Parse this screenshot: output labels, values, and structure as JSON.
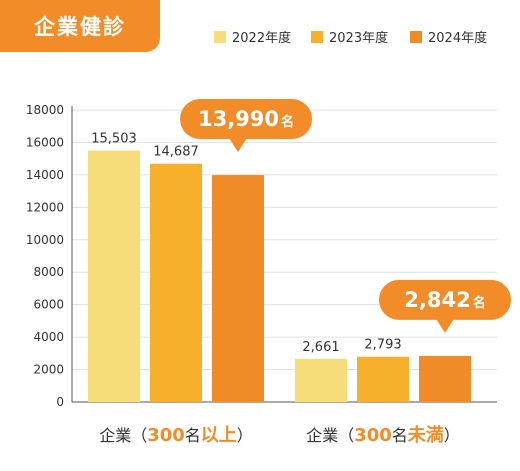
{
  "title": "企業健診",
  "colors": {
    "accent": "#f28c28",
    "series": [
      "#f7dc7a",
      "#f6b02c",
      "#f08c28"
    ],
    "axis_text": "#333333",
    "grid": "#e0e0e0"
  },
  "chart_data": {
    "type": "bar",
    "categories": [
      "企業（300名以上）",
      "企業（300名未満）"
    ],
    "category_label_parts": [
      [
        {
          "text": "企業（",
          "em": false
        },
        {
          "text": "300",
          "em": true
        },
        {
          "text": "名",
          "em": false
        },
        {
          "text": "以上",
          "em": true
        },
        {
          "text": "）",
          "em": false
        }
      ],
      [
        {
          "text": "企業（",
          "em": false
        },
        {
          "text": "300",
          "em": true
        },
        {
          "text": "名",
          "em": false
        },
        {
          "text": "未満",
          "em": true
        },
        {
          "text": "）",
          "em": false
        }
      ]
    ],
    "series": [
      {
        "name": "2022年度",
        "values": [
          15503,
          2661
        ],
        "labels": [
          "15,503",
          "2,661"
        ]
      },
      {
        "name": "2023年度",
        "values": [
          14687,
          2793
        ],
        "labels": [
          "14,687",
          "2,793"
        ]
      },
      {
        "name": "2024年度",
        "values": [
          13990,
          2842
        ],
        "labels": [
          "13,990名",
          "2,842名"
        ]
      }
    ],
    "ylim": [
      0,
      18000
    ],
    "yticks": [
      0,
      2000,
      4000,
      6000,
      8000,
      10000,
      12000,
      14000,
      16000,
      18000
    ],
    "grid": true,
    "legend": "top-right"
  }
}
